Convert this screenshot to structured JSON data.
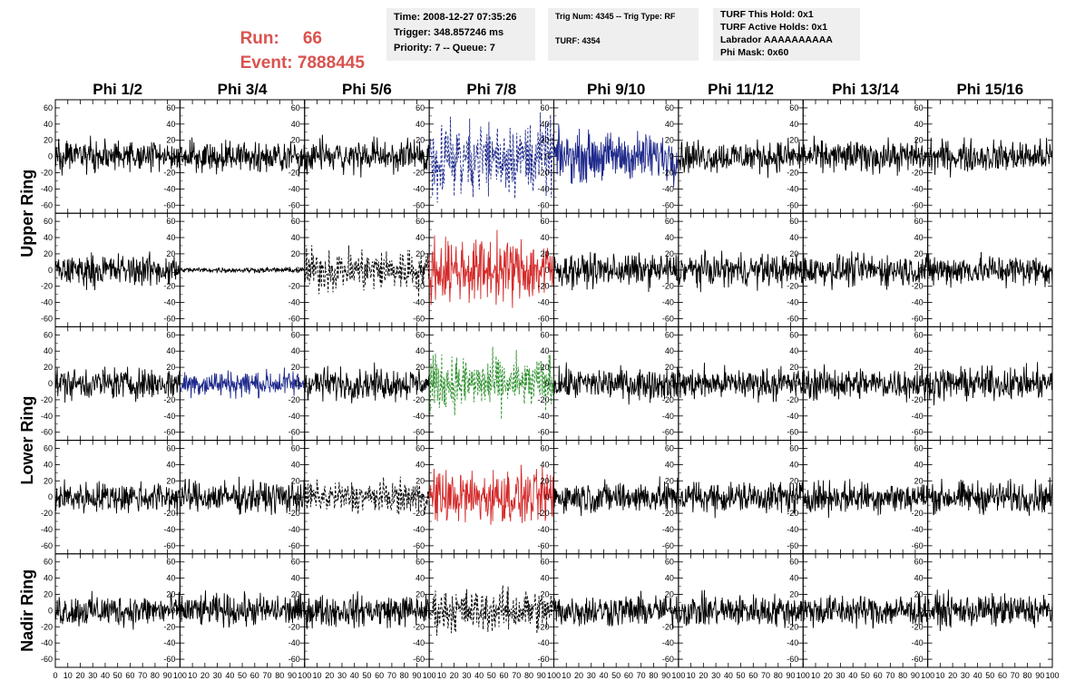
{
  "header": {
    "run_label": "Run:",
    "run_value": "66",
    "event_label": "Event:",
    "event_value": "7888445"
  },
  "info_boxes": [
    {
      "lines": [
        "Time: 2008-12-27 07:35:26",
        "Trigger: 348.857246 ms",
        "Priority: 7 -- Queue: 7"
      ]
    },
    {
      "lines": [
        "Trig Num: 4345 -- Trig Type: RF",
        "TURF: 4354"
      ]
    },
    {
      "lines": [
        "TURF This Hold: 0x1",
        "TURF Active Holds: 0x1",
        "Labrador AAAAAAAAAA",
        "Phi Mask: 0x60"
      ]
    }
  ],
  "chart_data": {
    "type": "line",
    "columns": [
      "Phi 1/2",
      "Phi 3/4",
      "Phi 5/6",
      "Phi 7/8",
      "Phi 9/10",
      "Phi 11/12",
      "Phi 13/14",
      "Phi 15/16"
    ],
    "rings": [
      "Upper Ring",
      "Lower Ring",
      "Nadir Ring"
    ],
    "xlim": [
      0,
      100
    ],
    "ylim": [
      -70,
      70
    ],
    "x_ticks": [
      0,
      10,
      20,
      30,
      40,
      50,
      60,
      70,
      80,
      90,
      100
    ],
    "x_tick_labels": [
      "0",
      "10",
      "20",
      "30",
      "40",
      "50",
      "60",
      "70",
      "80",
      "90",
      "100"
    ],
    "y_ticks": [
      -60,
      -40,
      -20,
      0,
      20,
      40,
      60
    ],
    "y_tick_labels": [
      "-60",
      "-40",
      "-20",
      "0",
      "20",
      "40",
      "60"
    ],
    "samples": 260,
    "default_amplitude": 12,
    "colors": {
      "black": "#000000",
      "blue": "#1f2a8c",
      "red": "#d42a2a",
      "green": "#2a8f2a"
    },
    "panels": [
      {
        "row": 0,
        "col": 3,
        "color": "blue",
        "dashed": true,
        "amplitude": 28
      },
      {
        "row": 0,
        "col": 4,
        "color": "blue",
        "dashed": false,
        "amplitude": 18
      },
      {
        "row": 1,
        "col": 1,
        "color": "black",
        "dashed": false,
        "amplitude": 2
      },
      {
        "row": 1,
        "col": 2,
        "color": "black",
        "dashed": true,
        "amplitude": 16
      },
      {
        "row": 1,
        "col": 3,
        "color": "red",
        "dashed": false,
        "amplitude": 24
      },
      {
        "row": 2,
        "col": 1,
        "color": "blue",
        "dashed": false,
        "amplitude": 10
      },
      {
        "row": 2,
        "col": 3,
        "color": "green",
        "dashed": true,
        "amplitude": 20
      },
      {
        "row": 3,
        "col": 2,
        "color": "black",
        "dashed": true,
        "amplitude": 12
      },
      {
        "row": 3,
        "col": 3,
        "color": "red",
        "dashed": false,
        "amplitude": 20
      },
      {
        "row": 4,
        "col": 3,
        "color": "black",
        "dashed": true,
        "amplitude": 16
      }
    ]
  }
}
